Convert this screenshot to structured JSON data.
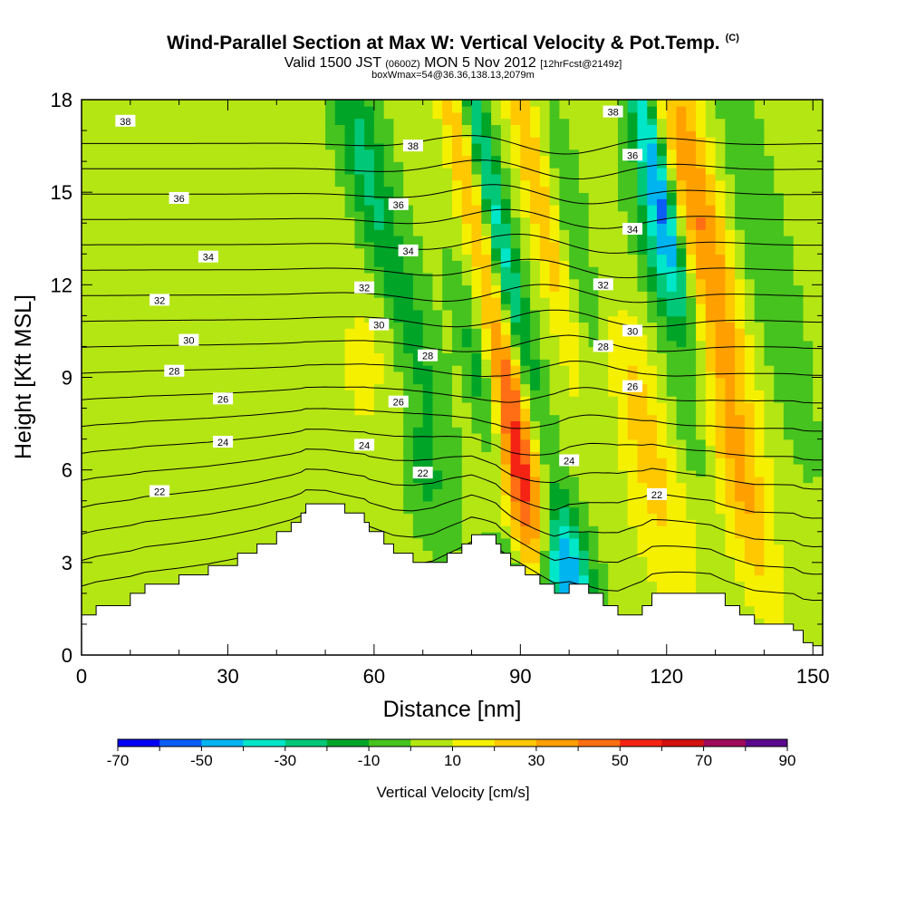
{
  "header": {
    "title": "Wind-Parallel Section at Max W: Vertical Velocity & Pot.Temp.",
    "copyright": "(C)",
    "valid_prefix": "Valid 1500 JST",
    "valid_utc": "(0600Z)",
    "valid_date": "MON 5 Nov 2012",
    "forecast": "[12hrFcst@2149z]",
    "box_info": "boxWmax=54@36.36,138.13,2079m"
  },
  "chart_data": {
    "type": "heatmap",
    "xlabel": "Distance [nm]",
    "ylabel": "Height [Kft MSL]",
    "xlim": [
      0,
      152
    ],
    "ylim": [
      0,
      18
    ],
    "x_ticks": [
      0,
      30,
      60,
      90,
      120,
      150
    ],
    "y_ticks": [
      0,
      3,
      6,
      9,
      12,
      15,
      18
    ],
    "colorbar": {
      "label": "Vertical Velocity [cm/s]",
      "tick_labels": [
        "-70",
        "-50",
        "-30",
        "-10",
        "10",
        "30",
        "50",
        "70",
        "90"
      ],
      "tick_values": [
        -70,
        -50,
        -30,
        -10,
        10,
        30,
        50,
        70,
        90
      ],
      "min": -70,
      "max": 90,
      "step": 10,
      "colors": [
        "#0000f5",
        "#0a5ef5",
        "#00b4f0",
        "#00e6c8",
        "#00c878",
        "#00a528",
        "#46c31e",
        "#b4e614",
        "#f5f000",
        "#ffc800",
        "#ffa000",
        "#ff6e14",
        "#f52314",
        "#d20f0f",
        "#a00a5a",
        "#5a0a8c"
      ]
    },
    "terrain": [
      [
        0,
        1.3
      ],
      [
        3,
        1.6
      ],
      [
        10,
        2.0
      ],
      [
        13,
        2.3
      ],
      [
        20,
        2.6
      ],
      [
        26,
        2.9
      ],
      [
        32,
        3.3
      ],
      [
        36,
        3.6
      ],
      [
        40,
        4.0
      ],
      [
        43,
        4.3
      ],
      [
        45,
        4.6
      ],
      [
        46,
        4.9
      ],
      [
        50,
        4.9
      ],
      [
        54,
        4.6
      ],
      [
        58,
        4.3
      ],
      [
        59,
        4.0
      ],
      [
        62,
        3.6
      ],
      [
        64,
        3.3
      ],
      [
        68,
        3.0
      ],
      [
        72,
        3.0
      ],
      [
        75,
        3.3
      ],
      [
        78,
        3.6
      ],
      [
        80,
        3.9
      ],
      [
        85,
        3.6
      ],
      [
        86,
        3.3
      ],
      [
        88,
        2.9
      ],
      [
        91,
        2.6
      ],
      [
        94,
        2.3
      ],
      [
        97,
        2.0
      ],
      [
        100,
        2.3
      ],
      [
        104,
        2.0
      ],
      [
        107,
        1.6
      ],
      [
        110,
        1.3
      ],
      [
        115,
        1.6
      ],
      [
        117,
        2.0
      ],
      [
        129,
        2.0
      ],
      [
        132,
        1.6
      ],
      [
        135,
        1.3
      ],
      [
        138,
        1.0
      ],
      [
        146,
        0.8
      ],
      [
        148,
        0.4
      ],
      [
        150,
        0.3
      ],
      [
        152,
        0.3
      ]
    ],
    "plumes": [
      {
        "x": 90,
        "dx": 3.5,
        "y": 5.5,
        "dy": 2.5,
        "w": 52
      },
      {
        "x": 88,
        "dx": 2.5,
        "y": 9,
        "dy": 1.5,
        "w": 18
      },
      {
        "x": 80,
        "dx": 2.5,
        "y": 15,
        "dy": 4.5,
        "w": 30
      },
      {
        "x": 94,
        "dx": 2.5,
        "y": 15,
        "dy": 4.5,
        "w": 32
      },
      {
        "x": 127,
        "dx": 3.5,
        "y": 14,
        "dy": 5,
        "w": 38
      },
      {
        "x": 118,
        "dx": 5,
        "y": 5,
        "dy": 3,
        "w": 18
      },
      {
        "x": 136,
        "dx": 3,
        "y": 5,
        "dy": 3,
        "w": 18
      },
      {
        "x": 113,
        "dx": 4,
        "y": 9,
        "dy": 2,
        "w": 12
      },
      {
        "x": 130,
        "dx": 5,
        "y": 6,
        "dy": 2.5,
        "w": 10
      },
      {
        "x": 60,
        "dx": 4,
        "y": 10,
        "dy": 2.5,
        "w": 10
      },
      {
        "x": 56,
        "dx": 1.5,
        "y": 9,
        "dy": 1,
        "w": 12
      },
      {
        "x": 30,
        "dx": 6,
        "y": 7,
        "dy": 2,
        "w": 6
      },
      {
        "x": 100,
        "dx": 3,
        "y": 3,
        "dy": 1.5,
        "w": -45
      },
      {
        "x": 97,
        "dx": 2.5,
        "y": 2.4,
        "dy": 1,
        "w": -30
      },
      {
        "x": 87,
        "dx": 2,
        "y": 2.8,
        "dy": 0.8,
        "w": -22
      },
      {
        "x": 118,
        "dx": 2,
        "y": 15.5,
        "dy": 3,
        "w": -52
      },
      {
        "x": 118,
        "dx": 2.5,
        "y": 13,
        "dy": 2,
        "w": -25
      },
      {
        "x": 85,
        "dx": 2,
        "y": 14,
        "dy": 5,
        "w": -42
      },
      {
        "x": 83,
        "dx": 2,
        "y": 8,
        "dy": 2.5,
        "w": -28
      },
      {
        "x": 58,
        "dx": 3,
        "y": 16,
        "dy": 3.5,
        "w": -25
      },
      {
        "x": 70,
        "dx": 3,
        "y": 6,
        "dy": 1.5,
        "w": -15
      },
      {
        "x": 100,
        "dx": 3,
        "y": 13,
        "dy": 4,
        "w": -14
      },
      {
        "x": 125,
        "dx": 3,
        "y": 7,
        "dy": 2,
        "w": -16
      },
      {
        "x": 140,
        "dx": 3,
        "y": 13,
        "dy": 4,
        "w": -12
      },
      {
        "x": 69,
        "dx": 3,
        "y": 10,
        "dy": 2.5,
        "w": -12
      }
    ],
    "theta_levels": [
      22,
      23,
      24,
      25,
      26,
      27,
      28,
      29,
      30,
      31,
      32,
      33,
      34,
      35,
      36,
      37,
      38,
      39
    ],
    "contour_labels": [
      {
        "x": 16,
        "y": 5.3,
        "v": "22"
      },
      {
        "x": 70,
        "y": 5.9,
        "v": "22"
      },
      {
        "x": 118,
        "y": 5.2,
        "v": "22"
      },
      {
        "x": 29,
        "y": 6.9,
        "v": "24"
      },
      {
        "x": 58,
        "y": 6.8,
        "v": "24"
      },
      {
        "x": 100,
        "y": 6.3,
        "v": "24"
      },
      {
        "x": 29,
        "y": 8.3,
        "v": "26"
      },
      {
        "x": 65,
        "y": 8.2,
        "v": "26"
      },
      {
        "x": 113,
        "y": 8.7,
        "v": "26"
      },
      {
        "x": 19,
        "y": 9.2,
        "v": "28"
      },
      {
        "x": 71,
        "y": 9.7,
        "v": "28"
      },
      {
        "x": 107,
        "y": 10.0,
        "v": "28"
      },
      {
        "x": 22,
        "y": 10.2,
        "v": "30"
      },
      {
        "x": 61,
        "y": 10.7,
        "v": "30"
      },
      {
        "x": 113,
        "y": 10.5,
        "v": "30"
      },
      {
        "x": 16,
        "y": 11.5,
        "v": "32"
      },
      {
        "x": 58,
        "y": 11.9,
        "v": "32"
      },
      {
        "x": 107,
        "y": 12.0,
        "v": "32"
      },
      {
        "x": 26,
        "y": 12.9,
        "v": "34"
      },
      {
        "x": 67,
        "y": 13.1,
        "v": "34"
      },
      {
        "x": 113,
        "y": 13.8,
        "v": "34"
      },
      {
        "x": 20,
        "y": 14.8,
        "v": "36"
      },
      {
        "x": 65,
        "y": 14.6,
        "v": "36"
      },
      {
        "x": 113,
        "y": 16.2,
        "v": "36"
      },
      {
        "x": 9,
        "y": 17.3,
        "v": "38"
      },
      {
        "x": 68,
        "y": 16.5,
        "v": "38"
      },
      {
        "x": 109,
        "y": 17.6,
        "v": "38"
      }
    ]
  }
}
